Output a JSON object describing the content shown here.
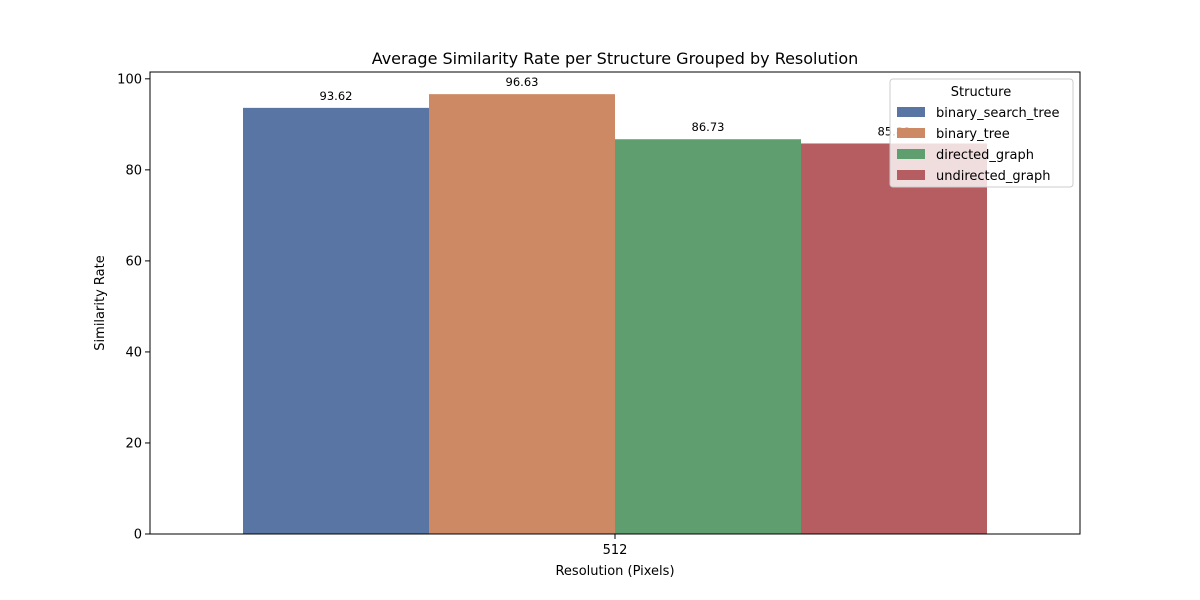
{
  "chart_data": {
    "type": "bar",
    "title": "Average Similarity Rate per Structure Grouped by Resolution",
    "xlabel": "Resolution (Pixels)",
    "ylabel": "Similarity Rate",
    "categories": [
      "512"
    ],
    "ylim": [
      0,
      101.5
    ],
    "yticks": [
      0,
      20,
      40,
      60,
      80,
      100
    ],
    "grid": false,
    "series": [
      {
        "name": "binary_search_tree",
        "values": [
          93.62
        ],
        "labels": [
          "93.62"
        ],
        "color": "#5875a4"
      },
      {
        "name": "binary_tree",
        "values": [
          96.63
        ],
        "labels": [
          "96.63"
        ],
        "color": "#cc8963"
      },
      {
        "name": "directed_graph",
        "values": [
          86.73
        ],
        "labels": [
          "86.73"
        ],
        "color": "#5f9e6e"
      },
      {
        "name": "undirected_graph",
        "values": [
          85.8
        ],
        "labels": [
          "85.80"
        ],
        "color": "#b55d60"
      }
    ],
    "legend": {
      "title": "Structure",
      "placement": "top-right"
    }
  }
}
